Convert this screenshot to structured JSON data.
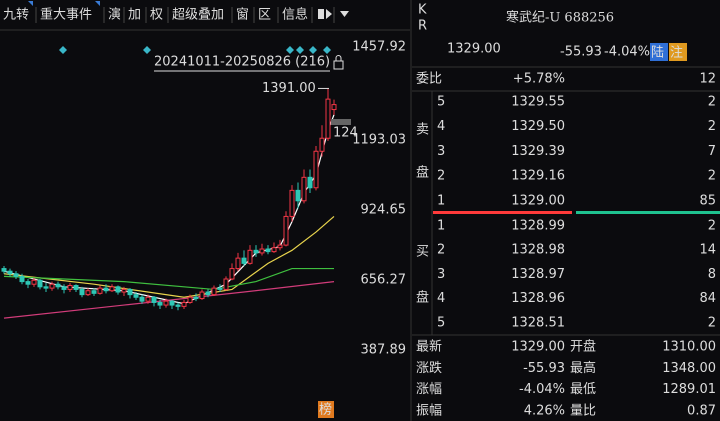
{
  "toolbar": [
    "九转",
    "重大事件",
    "演",
    "加",
    "权",
    "超级叠加",
    "窗",
    "区",
    "信息"
  ],
  "chart_data": {
    "type": "candlestick",
    "range_label": "20241011-20250826 (216)",
    "top_label": "1457.92",
    "high_label": "1391.00",
    "edge_label": "124",
    "badge": "榜",
    "ylim": [
      215,
      1596
    ],
    "yticks": [
      1193.03,
      924.65,
      656.27,
      387.89
    ],
    "candles": [
      [
        700,
        690,
        710,
        680
      ],
      [
        690,
        680,
        700,
        670
      ],
      [
        680,
        670,
        690,
        660
      ],
      [
        670,
        650,
        680,
        640
      ],
      [
        650,
        640,
        660,
        625
      ],
      [
        640,
        655,
        665,
        630
      ],
      [
        655,
        630,
        660,
        620
      ],
      [
        630,
        625,
        645,
        610
      ],
      [
        625,
        640,
        650,
        615
      ],
      [
        640,
        630,
        650,
        620
      ],
      [
        630,
        620,
        640,
        605
      ],
      [
        620,
        635,
        645,
        610
      ],
      [
        635,
        620,
        640,
        610
      ],
      [
        620,
        600,
        630,
        590
      ],
      [
        600,
        615,
        625,
        595
      ],
      [
        615,
        605,
        625,
        595
      ],
      [
        605,
        625,
        635,
        600
      ],
      [
        625,
        615,
        640,
        605
      ],
      [
        615,
        630,
        640,
        610
      ],
      [
        630,
        610,
        635,
        600
      ],
      [
        610,
        620,
        630,
        595
      ],
      [
        620,
        600,
        625,
        585
      ],
      [
        600,
        590,
        610,
        580
      ],
      [
        590,
        575,
        600,
        565
      ],
      [
        575,
        590,
        600,
        565
      ],
      [
        590,
        570,
        595,
        555
      ],
      [
        570,
        560,
        580,
        545
      ],
      [
        560,
        575,
        585,
        550
      ],
      [
        575,
        560,
        580,
        545
      ],
      [
        560,
        555,
        570,
        540
      ],
      [
        555,
        570,
        580,
        545
      ],
      [
        570,
        590,
        600,
        565
      ],
      [
        590,
        585,
        605,
        575
      ],
      [
        585,
        610,
        620,
        580
      ],
      [
        610,
        600,
        620,
        590
      ],
      [
        600,
        625,
        635,
        595
      ],
      [
        625,
        620,
        640,
        610
      ],
      [
        620,
        660,
        670,
        615
      ],
      [
        660,
        700,
        720,
        655
      ],
      [
        700,
        740,
        760,
        690
      ],
      [
        740,
        720,
        770,
        710
      ],
      [
        720,
        770,
        790,
        715
      ],
      [
        770,
        760,
        790,
        745
      ],
      [
        760,
        775,
        795,
        750
      ],
      [
        775,
        765,
        790,
        755
      ],
      [
        765,
        780,
        800,
        760
      ],
      [
        780,
        790,
        810,
        770
      ],
      [
        790,
        900,
        920,
        785
      ],
      [
        900,
        1000,
        1020,
        880
      ],
      [
        1000,
        960,
        1030,
        930
      ],
      [
        960,
        1050,
        1080,
        950
      ],
      [
        1050,
        1010,
        1080,
        990
      ],
      [
        1010,
        1150,
        1170,
        1000
      ],
      [
        1150,
        1200,
        1250,
        1130
      ],
      [
        1200,
        1350,
        1391,
        1190
      ],
      [
        1310,
        1329,
        1348,
        1289.01
      ]
    ],
    "lines": [
      {
        "color": "#ffffff",
        "x": [
          0,
          10,
          20,
          30,
          37,
          42,
          46,
          48,
          50,
          52,
          54,
          55
        ],
        "values": [
          690,
          630,
          615,
          565,
          640,
          760,
          785,
          880,
          990,
          1060,
          1230,
          1290
        ]
      },
      {
        "color": "#e8d44d",
        "x": [
          0,
          15,
          30,
          38,
          44,
          48,
          52,
          55
        ],
        "values": [
          680,
          640,
          590,
          620,
          720,
          770,
          840,
          900
        ]
      },
      {
        "color": "#3fbf3f",
        "x": [
          0,
          20,
          35,
          42,
          48,
          55
        ],
        "values": [
          670,
          650,
          620,
          650,
          700,
          700
        ]
      },
      {
        "color": "#d23c7a",
        "x": [
          0,
          20,
          40,
          55
        ],
        "values": [
          510,
          560,
          610,
          650
        ]
      }
    ]
  },
  "quote": {
    "kr": [
      "K",
      "R"
    ],
    "name": "寒武纪-U 688256",
    "price": "1329.00",
    "change": "-55.93",
    "pct": "-4.04%",
    "badge1": "陆",
    "badge2": "注",
    "ratio_label": "委比",
    "ratio": "+5.78%",
    "ratio_diff": "12",
    "sell_label": [
      "卖",
      "盘"
    ],
    "buy_label": [
      "买",
      "盘"
    ],
    "sells": [
      {
        "level": "5",
        "price": "1329.55",
        "vol": "2"
      },
      {
        "level": "4",
        "price": "1329.50",
        "vol": "2"
      },
      {
        "level": "3",
        "price": "1329.39",
        "vol": "7"
      },
      {
        "level": "2",
        "price": "1329.16",
        "vol": "2"
      },
      {
        "level": "1",
        "price": "1329.00",
        "vol": "85"
      }
    ],
    "buys": [
      {
        "level": "1",
        "price": "1328.99",
        "vol": "2"
      },
      {
        "level": "2",
        "price": "1328.98",
        "vol": "14"
      },
      {
        "level": "3",
        "price": "1328.97",
        "vol": "8"
      },
      {
        "level": "4",
        "price": "1328.96",
        "vol": "84"
      },
      {
        "level": "5",
        "price": "1328.51",
        "vol": "2"
      }
    ],
    "stats": [
      {
        "l1": "最新",
        "v1": "1329.00",
        "l2": "开盘",
        "v2": "1310.00"
      },
      {
        "l1": "涨跌",
        "v1": "-55.93",
        "l2": "最高",
        "v2": "1348.00"
      },
      {
        "l1": "涨幅",
        "v1": "-4.04%",
        "l2": "最低",
        "v2": "1289.01"
      },
      {
        "l1": "振幅",
        "v1": "4.26%",
        "l2": "量比",
        "v2": "0.87"
      }
    ]
  }
}
